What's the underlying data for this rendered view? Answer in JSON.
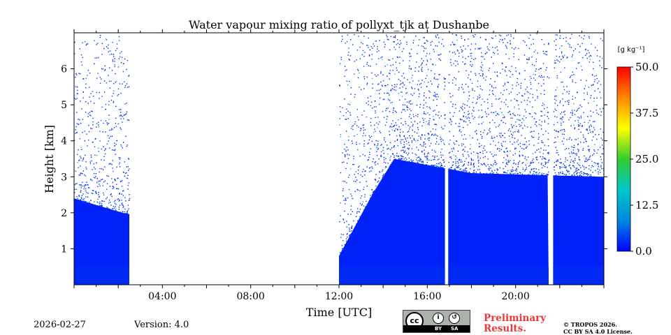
{
  "chart_data": {
    "type": "heatmap",
    "title": "Water vapour mixing ratio of pollyxt_tjk at Dushanbe",
    "xlabel": "Time [UTC]",
    "ylabel": "Height [km]",
    "xlim_hours": [
      0,
      24
    ],
    "ylim_km": [
      0,
      7
    ],
    "x_ticks": [
      {
        "hour": 4,
        "label": "04:00"
      },
      {
        "hour": 8,
        "label": "08:00"
      },
      {
        "hour": 12,
        "label": "12:00"
      },
      {
        "hour": 16,
        "label": "16:00"
      },
      {
        "hour": 20,
        "label": "20:00"
      }
    ],
    "y_ticks": [
      {
        "km": 1,
        "label": "1"
      },
      {
        "km": 2,
        "label": "2"
      },
      {
        "km": 3,
        "label": "3"
      },
      {
        "km": 4,
        "label": "4"
      },
      {
        "km": 5,
        "label": "5"
      },
      {
        "km": 6,
        "label": "6"
      }
    ],
    "colorbar": {
      "unit_label": "[g kg⁻¹]",
      "range": [
        0,
        50
      ],
      "ticks": [
        {
          "value": 50,
          "label": "50.0"
        },
        {
          "value": 37.5,
          "label": "37.5"
        },
        {
          "value": 25,
          "label": "25.0"
        },
        {
          "value": 12.5,
          "label": "12.5"
        },
        {
          "value": 0,
          "label": "0.0"
        }
      ],
      "colors": [
        "#0000ff",
        "#0088dd",
        "#00c8c8",
        "#33cc33",
        "#ffff00",
        "#ff8800",
        "#ff0000"
      ]
    },
    "data_periods_hours": [
      [
        0,
        2.5
      ],
      [
        12,
        16.8
      ],
      [
        16.95,
        21.5
      ],
      [
        21.7,
        24
      ]
    ],
    "mixed_layer_top_km": [
      {
        "hour": 0,
        "km": 2.4
      },
      {
        "hour": 2.2,
        "km": 2.0
      },
      {
        "hour": 12,
        "km": 0.8
      },
      {
        "hour": 13.5,
        "km": 2.5
      },
      {
        "hour": 14.5,
        "km": 3.5
      },
      {
        "hour": 18,
        "km": 3.1
      },
      {
        "hour": 24,
        "km": 3.0
      }
    ],
    "typical_values_g_per_kg": {
      "near_surface": 3,
      "mixed_layer": 2,
      "free_troposphere": 1,
      "aloft_noise_max": 20
    }
  },
  "footer": {
    "date": "2026-02-27",
    "version": "Version: 4.0",
    "preliminary_line1": "Preliminary",
    "preliminary_line2": "Results.",
    "copyright_line1": "© TROPOS 2026.",
    "copyright_line2": "CC BY SA 4.0 License.",
    "license_badge": {
      "cc": "cc",
      "by": "BY",
      "sa": "SA"
    }
  }
}
